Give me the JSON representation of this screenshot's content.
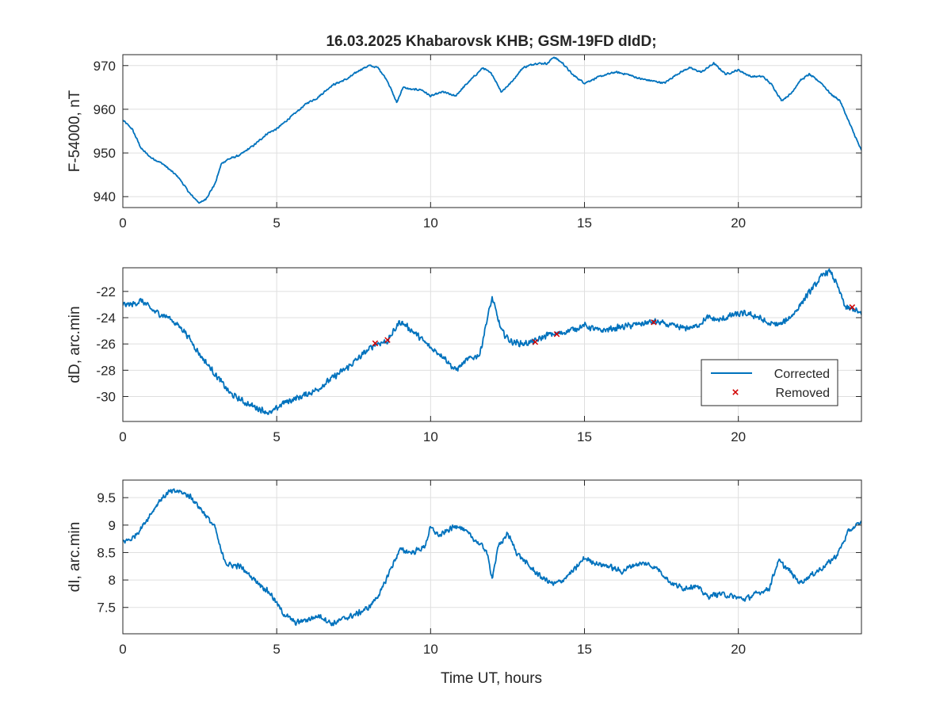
{
  "figure": {
    "title": "16.03.2025  Khabarovsk KHB; GSM-19FD dIdD;",
    "xlabel": "Time UT, hours"
  },
  "chart_data": [
    {
      "type": "line",
      "ylabel": "F-54000, nT",
      "xlim": [
        0,
        24
      ],
      "ylim": [
        937.5,
        972.5
      ],
      "xticks": [
        0,
        5,
        10,
        15,
        20
      ],
      "yticks": [
        940,
        950,
        960,
        970
      ],
      "grid": true,
      "noise": 0.25,
      "color": "#0072bd",
      "series": [
        {
          "x": [
            0,
            0.3,
            0.6,
            0.9,
            1.3,
            1.8,
            2.2,
            2.5,
            2.7,
            3.0,
            3.2,
            3.4,
            3.8,
            4.3,
            4.7,
            5.0,
            5.5,
            6.0,
            6.3,
            6.8,
            7.3,
            7.7,
            8.0,
            8.3,
            8.6,
            8.9,
            9.1,
            9.4,
            9.7,
            10.0,
            10.4,
            10.8,
            11.2,
            11.7,
            12.0,
            12.3,
            12.6,
            13.0,
            13.4,
            13.8,
            14.0,
            14.3,
            14.6,
            15.0,
            15.5,
            16.0,
            16.4,
            16.8,
            17.2,
            17.6,
            18.0,
            18.4,
            18.8,
            19.2,
            19.6,
            20.0,
            20.4,
            20.8,
            21.1,
            21.4,
            21.7,
            22.0,
            22.3,
            22.7,
            23.0,
            23.3,
            23.6,
            24.0
          ],
          "y": [
            957.5,
            955.5,
            951,
            949,
            947.5,
            944.5,
            940.5,
            938.5,
            939.5,
            943,
            947.5,
            948.5,
            949.5,
            952,
            954.5,
            955.5,
            958.5,
            961.5,
            962.5,
            965.5,
            967,
            969,
            970,
            969.5,
            966.5,
            961.5,
            965,
            964.5,
            964.5,
            963,
            964,
            963,
            966,
            969.5,
            968,
            964,
            966,
            969.5,
            970.5,
            970.5,
            972,
            970.5,
            968,
            966,
            967.5,
            968.5,
            968,
            967,
            966.5,
            966,
            968,
            969.5,
            968.5,
            970.5,
            968,
            969,
            967.5,
            967.5,
            965.5,
            962,
            963.5,
            966.5,
            968,
            966,
            963.5,
            962,
            957,
            950.5
          ]
        }
      ]
    },
    {
      "type": "line",
      "ylabel": "dD, arc.min",
      "xlim": [
        0,
        24
      ],
      "ylim": [
        -31.9,
        -20.2
      ],
      "xticks": [
        0,
        5,
        10,
        15,
        20
      ],
      "yticks": [
        -30,
        -28,
        -26,
        -24,
        -22
      ],
      "grid": true,
      "noise": 0.28,
      "color": "#0072bd",
      "series": [
        {
          "name": "Corrected",
          "x": [
            0,
            0.3,
            0.6,
            1.0,
            1.5,
            2.0,
            2.5,
            3.0,
            3.5,
            4.0,
            4.5,
            4.8,
            5.2,
            5.8,
            6.3,
            6.8,
            7.3,
            7.8,
            8.2,
            8.6,
            9.0,
            9.2,
            9.6,
            10.0,
            10.4,
            10.8,
            11.2,
            11.6,
            11.8,
            12.0,
            12.3,
            12.6,
            13.0,
            13.4,
            13.8,
            14.2,
            14.6,
            15.0,
            15.5,
            16.0,
            16.5,
            17.0,
            17.3,
            17.8,
            18.2,
            18.6,
            19.0,
            19.4,
            19.8,
            20.2,
            20.6,
            21.0,
            21.4,
            21.8,
            22.2,
            22.5,
            22.8,
            23.0,
            23.2,
            23.5,
            23.8,
            24.0
          ],
          "y": [
            -23.0,
            -23.0,
            -22.7,
            -23.5,
            -24.0,
            -25.0,
            -26.8,
            -28.3,
            -29.8,
            -30.5,
            -31.0,
            -31.3,
            -30.5,
            -30.0,
            -29.5,
            -28.6,
            -27.8,
            -26.8,
            -26.0,
            -25.8,
            -24.3,
            -24.6,
            -25.4,
            -26.3,
            -26.9,
            -28.0,
            -27.2,
            -26.8,
            -24.5,
            -22.5,
            -25.0,
            -25.8,
            -26.0,
            -25.8,
            -25.3,
            -25.2,
            -24.9,
            -24.6,
            -25.0,
            -24.8,
            -24.6,
            -24.4,
            -24.3,
            -24.6,
            -24.8,
            -24.7,
            -24.0,
            -24.2,
            -23.8,
            -23.7,
            -23.9,
            -24.5,
            -24.5,
            -23.7,
            -22.4,
            -21.5,
            -20.6,
            -20.5,
            -21.5,
            -23.3,
            -23.4,
            -23.8
          ]
        }
      ],
      "removed": {
        "name": "Removed",
        "color": "#d00000",
        "x": [
          8.2,
          8.6,
          13.4,
          14.1,
          17.25,
          23.7
        ],
        "y": [
          -25.95,
          -25.7,
          -25.85,
          -25.25,
          -24.35,
          -23.2
        ]
      },
      "legend": "bottom-right"
    },
    {
      "type": "line",
      "ylabel": "dI, arc.min",
      "xlim": [
        0,
        24
      ],
      "ylim": [
        7.02,
        9.82
      ],
      "xticks": [
        0,
        5,
        10,
        15,
        20
      ],
      "yticks": [
        7.5,
        8,
        8.5,
        9,
        9.5
      ],
      "yticklabels": [
        "7.5",
        "8",
        "8.5",
        "9",
        "9.5"
      ],
      "grid": true,
      "noise": 0.06,
      "color": "#0072bd",
      "series": [
        {
          "x": [
            0,
            0.3,
            0.6,
            0.9,
            1.2,
            1.5,
            1.8,
            2.2,
            2.6,
            3.0,
            3.2,
            3.4,
            3.8,
            4.3,
            4.8,
            5.2,
            5.6,
            6.0,
            6.4,
            6.8,
            7.2,
            7.6,
            8.0,
            8.4,
            8.7,
            9.0,
            9.4,
            9.8,
            10.0,
            10.3,
            10.6,
            10.9,
            11.2,
            11.5,
            11.8,
            12.0,
            12.2,
            12.5,
            12.8,
            13.2,
            13.6,
            14.0,
            14.3,
            14.7,
            15.0,
            15.4,
            15.8,
            16.2,
            16.6,
            17.0,
            17.4,
            17.8,
            18.2,
            18.6,
            19.0,
            19.4,
            19.8,
            20.2,
            20.6,
            21.0,
            21.3,
            21.6,
            22.0,
            22.4,
            22.8,
            23.2,
            23.6,
            24.0
          ],
          "y": [
            8.7,
            8.75,
            8.95,
            9.2,
            9.45,
            9.6,
            9.62,
            9.52,
            9.25,
            8.95,
            8.5,
            8.28,
            8.25,
            8.0,
            7.75,
            7.4,
            7.22,
            7.28,
            7.35,
            7.2,
            7.3,
            7.38,
            7.5,
            7.8,
            8.2,
            8.55,
            8.5,
            8.6,
            8.95,
            8.8,
            8.92,
            9.0,
            8.85,
            8.7,
            8.55,
            8.05,
            8.6,
            8.85,
            8.5,
            8.25,
            8.05,
            7.92,
            8.0,
            8.2,
            8.4,
            8.3,
            8.25,
            8.15,
            8.28,
            8.3,
            8.2,
            7.95,
            7.85,
            7.9,
            7.7,
            7.75,
            7.7,
            7.65,
            7.75,
            7.85,
            8.35,
            8.2,
            7.95,
            8.1,
            8.25,
            8.45,
            8.9,
            9.05
          ]
        }
      ]
    }
  ]
}
